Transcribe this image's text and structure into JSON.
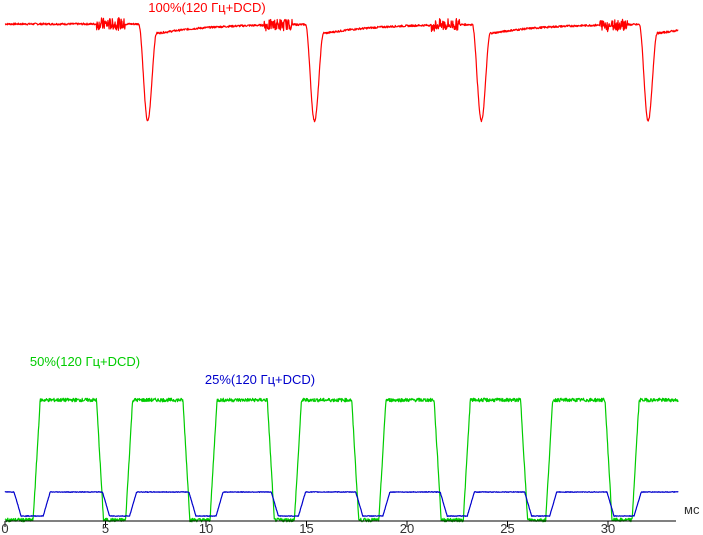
{
  "chart_data": {
    "type": "line",
    "xlabel": "",
    "ylabel": "",
    "x_unit_label": "мс",
    "xlim": [
      0,
      33.5
    ],
    "x_ticks": [
      0,
      5,
      10,
      15,
      20,
      25,
      30
    ],
    "grid": false,
    "legend": "inline labels above each trace",
    "refresh_period_ms": 8.333,
    "series": [
      {
        "name": "100%(120 Гц+DCD)",
        "color": "#ff0000",
        "panel": "top",
        "baseline_level": 1.0,
        "dip_level": 0.0,
        "dip_centers_ms": [
          7.1,
          15.4,
          23.7,
          32.0
        ],
        "dip_half_width_ms": 0.45
      },
      {
        "name": "50%(120 Гц+DCD)",
        "color": "#00cc00",
        "panel": "bottom",
        "high_level": 0.53,
        "low_level": 0.0,
        "off_intervals_ms": [
          [
            0.0,
            1.4
          ],
          [
            4.9,
            6.0
          ],
          [
            9.2,
            10.2
          ],
          [
            13.4,
            14.4
          ],
          [
            17.6,
            18.6
          ],
          [
            21.7,
            22.8
          ],
          [
            26.0,
            26.9
          ],
          [
            30.2,
            31.2
          ]
        ]
      },
      {
        "name": "25%(120 Гц+DCD)",
        "color": "#0000cc",
        "panel": "bottom",
        "high_level": 0.05,
        "low_level": 0.0,
        "off_intervals_ms": [
          [
            0.8,
            1.9
          ],
          [
            5.2,
            6.2
          ],
          [
            9.5,
            10.5
          ],
          [
            13.6,
            14.6
          ],
          [
            17.8,
            18.8
          ],
          [
            22.0,
            23.0
          ],
          [
            26.2,
            27.1
          ],
          [
            30.3,
            31.3
          ]
        ]
      }
    ]
  }
}
